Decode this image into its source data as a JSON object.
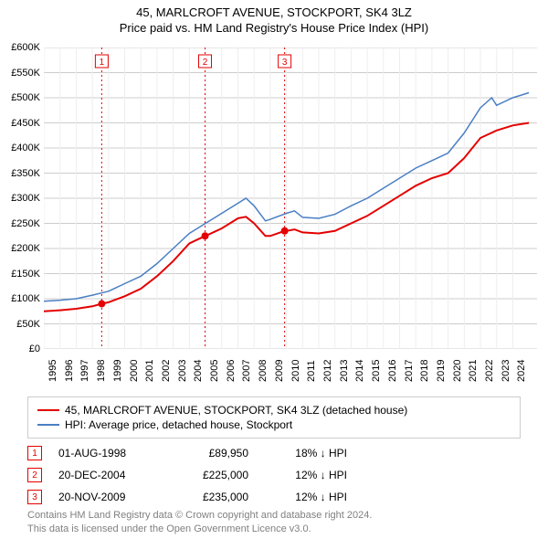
{
  "title1": "45, MARLCROFT AVENUE, STOCKPORT, SK4 3LZ",
  "title2": "Price paid vs. HM Land Registry's House Price Index (HPI)",
  "chart": {
    "x_start": 1995,
    "x_end": 2025.5,
    "x_ticks": [
      1995,
      1996,
      1997,
      1998,
      1999,
      2000,
      2001,
      2002,
      2003,
      2004,
      2005,
      2006,
      2007,
      2008,
      2009,
      2010,
      2011,
      2012,
      2013,
      2014,
      2015,
      2016,
      2017,
      2018,
      2019,
      2020,
      2021,
      2022,
      2023,
      2024
    ],
    "y_min": 0,
    "y_max": 600000,
    "y_ticks": [
      0,
      50000,
      100000,
      150000,
      200000,
      250000,
      300000,
      350000,
      400000,
      450000,
      500000,
      550000,
      600000
    ],
    "grid_color": "#cccccc",
    "background_color": "#ffffff",
    "series": [
      {
        "name": "property",
        "color": "#e40000",
        "width": 2,
        "points": [
          [
            1995,
            75000
          ],
          [
            1996,
            77000
          ],
          [
            1997,
            80000
          ],
          [
            1998,
            85000
          ],
          [
            1998.58,
            89950
          ],
          [
            1999,
            93000
          ],
          [
            2000,
            105000
          ],
          [
            2001,
            120000
          ],
          [
            2002,
            145000
          ],
          [
            2003,
            175000
          ],
          [
            2004,
            210000
          ],
          [
            2004.97,
            225000
          ],
          [
            2005,
            225000
          ],
          [
            2006,
            240000
          ],
          [
            2007,
            260000
          ],
          [
            2007.5,
            263000
          ],
          [
            2008,
            250000
          ],
          [
            2008.7,
            225000
          ],
          [
            2009,
            225000
          ],
          [
            2009.89,
            235000
          ],
          [
            2010,
            235000
          ],
          [
            2010.5,
            238000
          ],
          [
            2011,
            232000
          ],
          [
            2012,
            230000
          ],
          [
            2013,
            235000
          ],
          [
            2014,
            250000
          ],
          [
            2015,
            265000
          ],
          [
            2016,
            285000
          ],
          [
            2017,
            305000
          ],
          [
            2018,
            325000
          ],
          [
            2019,
            340000
          ],
          [
            2020,
            350000
          ],
          [
            2021,
            380000
          ],
          [
            2022,
            420000
          ],
          [
            2023,
            435000
          ],
          [
            2024,
            445000
          ],
          [
            2025,
            450000
          ]
        ]
      },
      {
        "name": "hpi",
        "color": "#4a7fc4",
        "width": 1.5,
        "points": [
          [
            1995,
            95000
          ],
          [
            1996,
            97000
          ],
          [
            1997,
            100000
          ],
          [
            1998,
            107000
          ],
          [
            1999,
            115000
          ],
          [
            2000,
            130000
          ],
          [
            2001,
            145000
          ],
          [
            2002,
            170000
          ],
          [
            2003,
            200000
          ],
          [
            2004,
            230000
          ],
          [
            2005,
            250000
          ],
          [
            2006,
            270000
          ],
          [
            2007,
            290000
          ],
          [
            2007.5,
            300000
          ],
          [
            2008,
            285000
          ],
          [
            2008.7,
            255000
          ],
          [
            2009,
            258000
          ],
          [
            2010,
            270000
          ],
          [
            2010.5,
            275000
          ],
          [
            2011,
            262000
          ],
          [
            2012,
            260000
          ],
          [
            2013,
            268000
          ],
          [
            2014,
            285000
          ],
          [
            2015,
            300000
          ],
          [
            2016,
            320000
          ],
          [
            2017,
            340000
          ],
          [
            2018,
            360000
          ],
          [
            2019,
            375000
          ],
          [
            2020,
            390000
          ],
          [
            2021,
            430000
          ],
          [
            2022,
            480000
          ],
          [
            2022.7,
            500000
          ],
          [
            2023,
            485000
          ],
          [
            2024,
            500000
          ],
          [
            2025,
            510000
          ]
        ]
      }
    ],
    "markers": [
      {
        "num": "1",
        "x": 1998.58,
        "y": 89950,
        "color": "#e40000"
      },
      {
        "num": "2",
        "x": 2004.97,
        "y": 225000,
        "color": "#e40000"
      },
      {
        "num": "3",
        "x": 2009.89,
        "y": 235000,
        "color": "#e40000"
      }
    ]
  },
  "legend": [
    {
      "color": "#e40000",
      "label": "45, MARLCROFT AVENUE, STOCKPORT, SK4 3LZ (detached house)"
    },
    {
      "color": "#4a7fc4",
      "label": "HPI: Average price, detached house, Stockport"
    }
  ],
  "events": [
    {
      "num": "1",
      "color": "#e40000",
      "date": "01-AUG-1998",
      "price": "£89,950",
      "diff": "18% ↓ HPI"
    },
    {
      "num": "2",
      "color": "#e40000",
      "date": "20-DEC-2004",
      "price": "£225,000",
      "diff": "12% ↓ HPI"
    },
    {
      "num": "3",
      "color": "#e40000",
      "date": "20-NOV-2009",
      "price": "£235,000",
      "diff": "12% ↓ HPI"
    }
  ],
  "footer1": "Contains HM Land Registry data © Crown copyright and database right 2024.",
  "footer2": "This data is licensed under the Open Government Licence v3.0."
}
